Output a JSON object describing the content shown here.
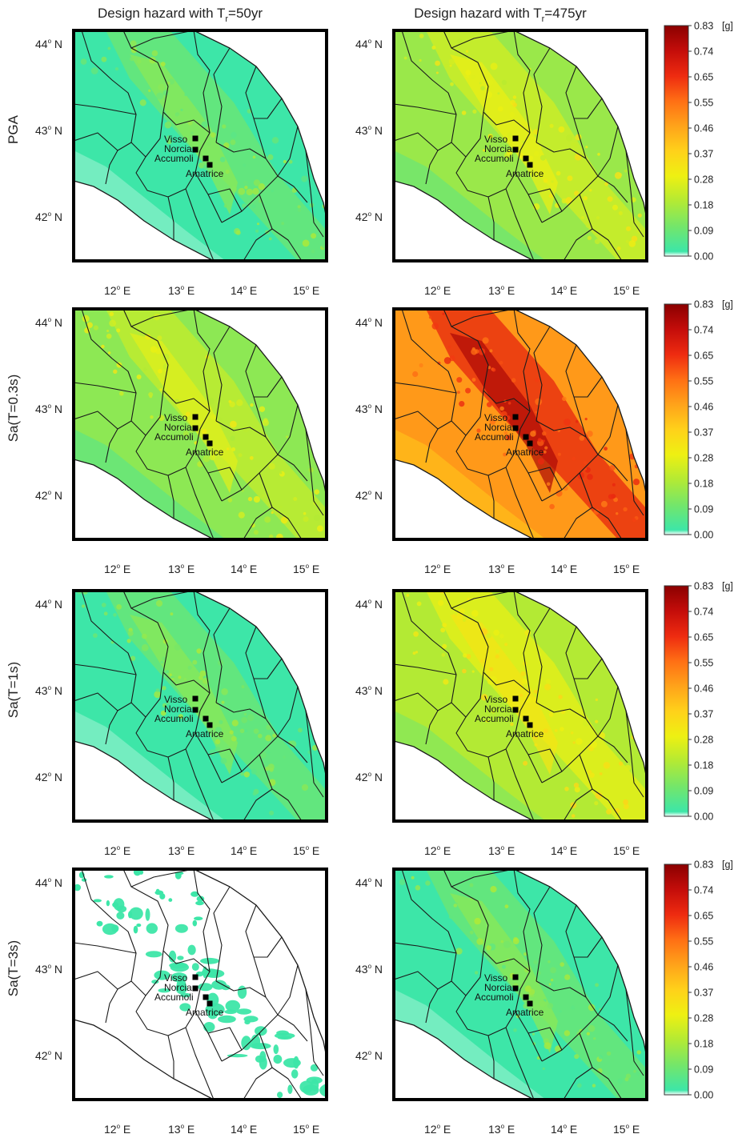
{
  "column_titles": [
    "Design hazard with T",
    "Design hazard with T"
  ],
  "column_title_parts": [
    {
      "pre": "Design hazard with T",
      "sub": "r",
      "post": "=50yr"
    },
    {
      "pre": "Design hazard with T",
      "sub": "r",
      "post": "=475yr"
    }
  ],
  "row_titles": [
    "PGA",
    "Sa(T=0.3s)",
    "Sa(T=1s)",
    "Sa(T=3s)"
  ],
  "lat_ticks": [
    "44",
    "43",
    "42"
  ],
  "lat_suffix": "N",
  "lon_ticks": [
    "12",
    "13",
    "14",
    "15"
  ],
  "lon_suffix": "E",
  "degree_symbol": "o",
  "towns": [
    "Visso",
    "Norcia",
    "Accumoli",
    "Amatrice"
  ],
  "colorbar": {
    "ticks": [
      "0.00",
      "0.09",
      "0.18",
      "0.28",
      "0.37",
      "0.46",
      "0.55",
      "0.65",
      "0.74",
      "0.83"
    ],
    "unit": "[g]",
    "colors": [
      "#ffffff",
      "#3de6a8",
      "#74e66a",
      "#b3ea34",
      "#eef012",
      "#ffd11a",
      "#ffa31a",
      "#ff6f14",
      "#ee2b10",
      "#c40d0a",
      "#8b0000"
    ]
  },
  "panels": [
    {
      "row": "PGA",
      "col": "Tr=50yr",
      "level": 0.1
    },
    {
      "row": "PGA",
      "col": "Tr=475yr",
      "level": 0.26
    },
    {
      "row": "Sa(T=0.3s)",
      "col": "Tr=50yr",
      "level": 0.24
    },
    {
      "row": "Sa(T=0.3s)",
      "col": "Tr=475yr",
      "level": 0.62
    },
    {
      "row": "Sa(T=1s)",
      "col": "Tr=50yr",
      "level": 0.1
    },
    {
      "row": "Sa(T=1s)",
      "col": "Tr=475yr",
      "level": 0.3
    },
    {
      "row": "Sa(T=3s)",
      "col": "Tr=50yr",
      "level": 0.02
    },
    {
      "row": "Sa(T=3s)",
      "col": "Tr=475yr",
      "level": 0.1
    }
  ]
}
